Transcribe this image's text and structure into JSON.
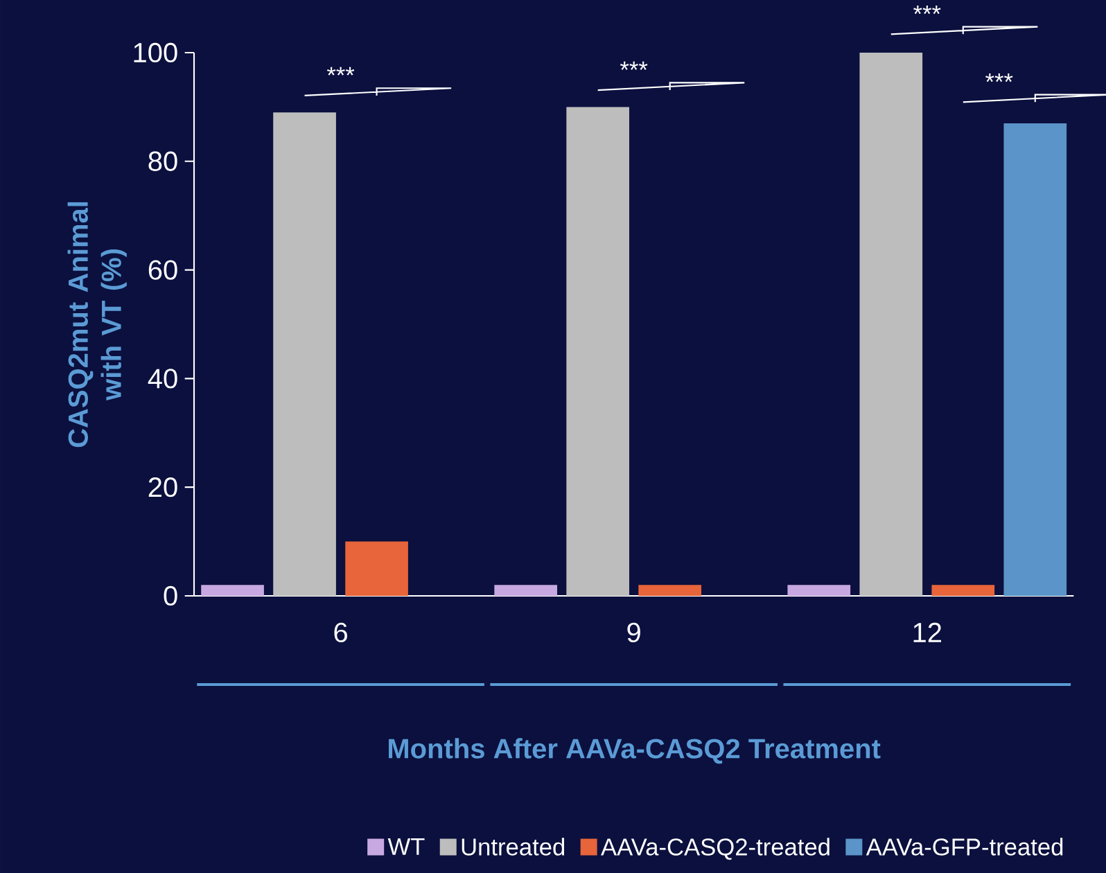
{
  "chart_data": {
    "type": "bar",
    "xlabel": "Months After AAVa-CASQ2 Treatment",
    "ylabel": "CASQ2mut Animal with VT (%)",
    "categories": [
      "6",
      "9",
      "12"
    ],
    "series": [
      {
        "name": "WT",
        "color": "#c8a8e0",
        "values": [
          2,
          2,
          2
        ]
      },
      {
        "name": "Untreated",
        "color": "#bdbdbd",
        "values": [
          89,
          90,
          100
        ]
      },
      {
        "name": "AAVa-CASQ2-treated",
        "color": "#e8643a",
        "values": [
          10,
          2,
          2
        ]
      },
      {
        "name": "AAVa-GFP-treated",
        "color": "#5b94c8",
        "values": [
          null,
          null,
          87
        ]
      }
    ],
    "ylim": [
      0,
      100
    ],
    "yticks": [
      0,
      20,
      40,
      60,
      80,
      100
    ],
    "grid": false,
    "legend": "bottom right",
    "annotations": [
      "***",
      "***",
      "***",
      "***"
    ]
  }
}
